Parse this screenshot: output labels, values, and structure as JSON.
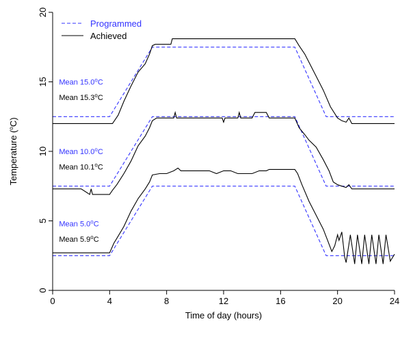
{
  "chart_data": {
    "type": "line",
    "title": "",
    "xlabel": "Time of day (hours)",
    "ylabel_parts": {
      "main": "Temperature (",
      "sup": "o",
      "end": "C)"
    },
    "xlim": [
      0,
      24
    ],
    "ylim": [
      0,
      20
    ],
    "xticks": [
      0,
      4,
      8,
      12,
      16,
      20,
      24
    ],
    "yticks": [
      0,
      5,
      10,
      15,
      20
    ],
    "grid": false,
    "legend": {
      "placement": "top-left",
      "entries": [
        {
          "label": "Programmed",
          "color": "#3333ff",
          "style": "dashed"
        },
        {
          "label": "Achieved",
          "color": "#000000",
          "style": "solid"
        }
      ]
    },
    "annotations": [
      {
        "pre": "Mean 15.0",
        "sup": "o",
        "post": "C",
        "color": "#3333ff",
        "x": 0.45,
        "y": 15.0
      },
      {
        "pre": "Mean 15.3",
        "sup": "o",
        "post": "C",
        "color": "#000000",
        "x": 0.45,
        "y": 13.9
      },
      {
        "pre": "Mean 10.0",
        "sup": "o",
        "post": "C",
        "color": "#3333ff",
        "x": 0.45,
        "y": 10.0
      },
      {
        "pre": "Mean 10.1",
        "sup": "o",
        "post": "C",
        "color": "#000000",
        "x": 0.45,
        "y": 8.9
      },
      {
        "pre": "Mean 5.0",
        "sup": "o",
        "post": "C",
        "color": "#3333ff",
        "x": 0.45,
        "y": 4.8
      },
      {
        "pre": "Mean 5.9",
        "sup": "o",
        "post": "C",
        "color": "#000000",
        "x": 0.45,
        "y": 3.7
      }
    ],
    "series": [
      {
        "name": "Programmed",
        "color": "#3333ff",
        "dashed": true,
        "x": [
          0,
          4,
          7,
          17,
          19.2,
          24
        ],
        "y": [
          12.5,
          12.5,
          17.5,
          17.5,
          12.5,
          12.5
        ]
      },
      {
        "color": "#3333ff",
        "dashed": true,
        "x": [
          0,
          4,
          7,
          17,
          19.2,
          24
        ],
        "y": [
          7.5,
          7.5,
          12.5,
          12.5,
          7.5,
          7.5
        ]
      },
      {
        "color": "#3333ff",
        "dashed": true,
        "x": [
          0,
          4,
          7,
          17,
          19.2,
          24
        ],
        "y": [
          2.5,
          2.5,
          7.5,
          7.5,
          2.5,
          2.5
        ]
      },
      {
        "name": "Achieved",
        "color": "#000000",
        "dashed": false,
        "x": [
          0,
          4.2,
          4.6,
          5,
          5.5,
          6,
          6.5,
          6.8,
          7,
          7.2,
          8.3,
          8.4,
          10,
          12,
          14,
          16,
          17,
          17.3,
          17.7,
          18,
          18.5,
          19,
          19.5,
          20,
          20.3,
          20.6,
          20.8,
          21,
          24
        ],
        "y": [
          12.0,
          12.0,
          12.6,
          13.6,
          14.7,
          15.7,
          16.3,
          17.0,
          17.6,
          17.7,
          17.7,
          18.1,
          18.1,
          18.1,
          18.1,
          18.1,
          18.1,
          17.6,
          17.0,
          16.4,
          15.4,
          14.4,
          13.2,
          12.4,
          12.2,
          12.1,
          12.4,
          12.0,
          12.0
        ]
      },
      {
        "color": "#000000",
        "dashed": false,
        "x": [
          0,
          2,
          2.6,
          2.7,
          2.8,
          4,
          4.2,
          4.5,
          5,
          5.5,
          6,
          6.5,
          6.8,
          7,
          7.3,
          8,
          8.5,
          8.6,
          8.7,
          9,
          10,
          11,
          11.9,
          12,
          12.1,
          13,
          13.1,
          13.2,
          13.5,
          14,
          14.2,
          14.5,
          15,
          15.2,
          16,
          17,
          17.3,
          17.7,
          18,
          18.5,
          19,
          19.4,
          19.7,
          20,
          20.3,
          20.6,
          20.8,
          21,
          24
        ],
        "y": [
          7.3,
          7.3,
          6.9,
          7.3,
          6.9,
          6.9,
          7.2,
          7.6,
          8.4,
          9.3,
          10.4,
          11.1,
          11.7,
          12.2,
          12.4,
          12.4,
          12.4,
          12.8,
          12.4,
          12.4,
          12.4,
          12.4,
          12.4,
          12.1,
          12.4,
          12.4,
          12.8,
          12.4,
          12.4,
          12.4,
          12.8,
          12.8,
          12.8,
          12.4,
          12.4,
          12.4,
          11.7,
          11.2,
          10.8,
          10.3,
          9.4,
          8.6,
          7.8,
          7.6,
          7.5,
          7.4,
          7.6,
          7.3,
          7.3
        ]
      },
      {
        "color": "#000000",
        "dashed": false,
        "x": [
          0,
          2,
          4,
          4.3,
          4.6,
          5,
          5.5,
          6,
          6.5,
          6.8,
          7,
          7.5,
          8,
          8.5,
          8.8,
          9,
          9.5,
          10,
          11,
          11.5,
          12,
          12.5,
          13,
          14,
          14.5,
          15,
          15.2,
          16,
          17,
          17.2,
          17.5,
          18,
          18.5,
          19,
          19.3,
          19.6,
          19.8,
          20,
          20.1,
          20.3,
          20.5,
          20.6,
          20.9,
          21.2,
          21.4,
          21.7,
          21.9,
          22.2,
          22.4,
          22.7,
          22.9,
          23.2,
          23.4,
          23.7,
          24
        ],
        "y": [
          2.7,
          2.7,
          2.7,
          3.4,
          3.9,
          4.6,
          5.7,
          6.6,
          7.3,
          7.8,
          8.3,
          8.4,
          8.4,
          8.6,
          8.8,
          8.6,
          8.6,
          8.6,
          8.6,
          8.4,
          8.6,
          8.6,
          8.4,
          8.4,
          8.6,
          8.6,
          8.7,
          8.7,
          8.7,
          8.4,
          7.6,
          6.4,
          5.4,
          4.4,
          3.6,
          2.8,
          3.2,
          4.0,
          3.6,
          4.2,
          2.4,
          2.0,
          4.0,
          1.9,
          4.0,
          1.9,
          4.0,
          1.9,
          4.0,
          1.9,
          4.0,
          1.9,
          4.0,
          2.1,
          2.6
        ]
      }
    ]
  }
}
